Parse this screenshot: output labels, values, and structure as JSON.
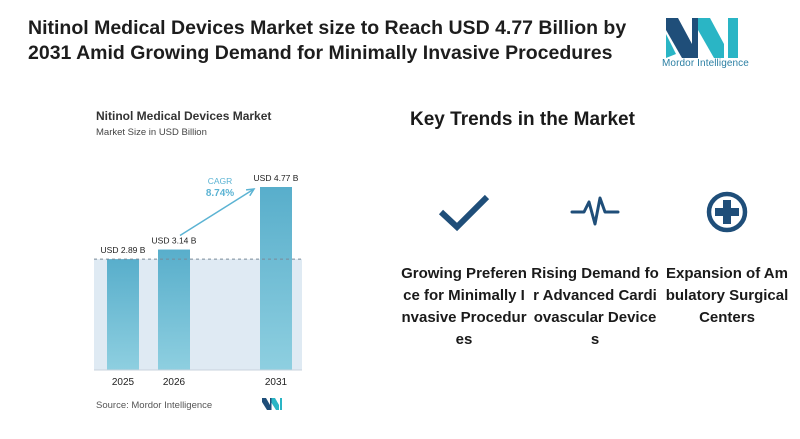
{
  "headline": "Nitinol Medical Devices Market size to Reach USD 4.77 Billion by 2031 Amid Growing Demand for Minimally Invasive Procedures",
  "brand": {
    "name": "Mordor Intelligence",
    "color_dark": "#1f4e79",
    "color_teal": "#2ab5c5"
  },
  "source": "Source: Mordor Intelligence",
  "colors": {
    "bar": "#58aecb",
    "bar_light": "#8ecfe0",
    "shade": "#dfeaf3",
    "arrow": "#5bb3d3"
  },
  "chart_data": {
    "type": "bar",
    "title": "Nitinol Medical Devices Market",
    "subtitle": "Market Size in USD Billion",
    "categories": [
      "2025",
      "2026",
      "2031"
    ],
    "values": [
      2.89,
      3.14,
      4.77
    ],
    "data_labels": [
      "USD 2.89 B",
      "USD 3.14 B",
      "USD 4.77 B"
    ],
    "annotation": {
      "label": "CAGR",
      "value": "8.74%"
    },
    "grid": false,
    "legend": "none"
  },
  "trends": {
    "title": "Key Trends in the Market",
    "items": [
      {
        "icon": "checkmark-icon",
        "label": "Growing Preference for Minimally Invasive Procedures"
      },
      {
        "icon": "heartbeat-icon",
        "label": "Rising Demand for Advanced Cardiovascular Devices"
      },
      {
        "icon": "medical-cross-icon",
        "label": "Expansion of Ambulatory Surgical Centers"
      }
    ]
  }
}
